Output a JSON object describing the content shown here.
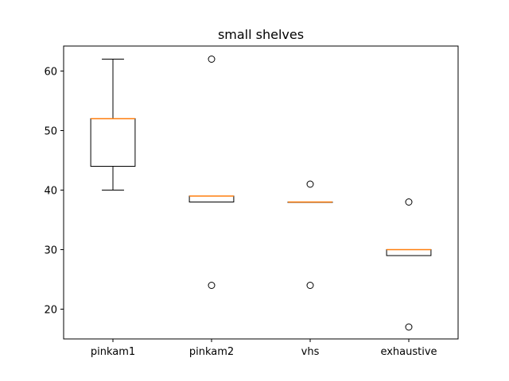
{
  "chart_data": {
    "type": "box",
    "title": "small shelves",
    "xlabel": "",
    "ylabel": "",
    "ylim": [
      15,
      64.2
    ],
    "yticks": [
      20,
      30,
      40,
      50,
      60
    ],
    "grid": false,
    "categories": [
      "pinkam1",
      "pinkam2",
      "vhs",
      "exhaustive"
    ],
    "boxes": [
      {
        "category": "pinkam1",
        "whisker_low": 40,
        "q1": 44,
        "median": 52,
        "q3": 52,
        "whisker_high": 62,
        "outliers": []
      },
      {
        "category": "pinkam2",
        "whisker_low": 38,
        "q1": 38,
        "median": 39,
        "q3": 39,
        "whisker_high": 39,
        "outliers": [
          24,
          62
        ]
      },
      {
        "category": "vhs",
        "whisker_low": 38,
        "q1": 38,
        "median": 38,
        "q3": 38,
        "whisker_high": 38,
        "outliers": [
          24,
          41
        ]
      },
      {
        "category": "exhaustive",
        "whisker_low": 29,
        "q1": 29,
        "median": 30,
        "q3": 30,
        "whisker_high": 30,
        "outliers": [
          17,
          38
        ]
      }
    ],
    "colors": {
      "median": "#ff7f0e",
      "box": "#000000"
    }
  }
}
